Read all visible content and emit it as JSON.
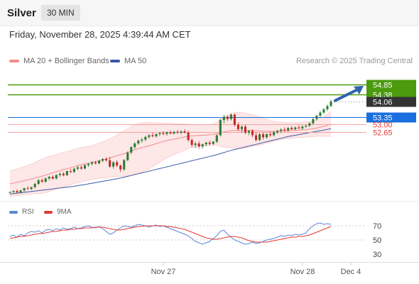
{
  "header": {
    "instrument": "Silver",
    "timeframe": "30 MIN",
    "datetime": "Friday, November 28, 2025 4:39:44 AM CET"
  },
  "legend": {
    "bollinger": "MA 20 + Bollinger Bands",
    "ma50": "MA 50",
    "credit": "Research © 2025 Trading Central"
  },
  "rsi_legend": {
    "rsi": "RSI",
    "ma9": "9MA"
  },
  "colors": {
    "up_candle": "#2e7d32",
    "down_candle": "#c62828",
    "bollinger": "#f28b8b",
    "ma50": "#3a5aa8",
    "resistance": "#4c9a0e",
    "support": "#f5a3a3",
    "pivot": "#1a6fe0",
    "current": "#333333",
    "arrow": "#2f63b0",
    "rsi": "#5b86d6",
    "rsi_ma": "#e53935"
  },
  "chart_data": [
    {
      "type": "candlestick",
      "title": "Silver",
      "timeframe": "30 MIN",
      "ylim": [
        49.3,
        55.6
      ],
      "x_labels": [
        "Nov 27",
        "Nov 28",
        "Dec 4"
      ],
      "current_price": 54.06,
      "levels": [
        {
          "value": 54.85,
          "label": "54.85",
          "kind": "resistance"
        },
        {
          "value": 54.38,
          "label": "54.38",
          "kind": "resistance"
        },
        {
          "value": 54.06,
          "label": "54.06",
          "kind": "current"
        },
        {
          "value": 53.35,
          "label": "53.35",
          "kind": "pivot"
        },
        {
          "value": 53.0,
          "label": "53.00",
          "kind": "support"
        },
        {
          "value": 52.65,
          "label": "52.65",
          "kind": "support"
        }
      ],
      "forecast": {
        "from": 54.1,
        "to": 54.85,
        "direction": "up"
      },
      "candles": [
        [
          49.85,
          49.9,
          49.8,
          49.87
        ],
        [
          49.87,
          49.95,
          49.84,
          49.92
        ],
        [
          49.92,
          50.0,
          49.88,
          49.85
        ],
        [
          49.85,
          49.98,
          49.82,
          49.95
        ],
        [
          49.95,
          50.08,
          49.9,
          50.05
        ],
        [
          50.05,
          50.15,
          49.98,
          50.02
        ],
        [
          50.02,
          50.12,
          49.96,
          50.1
        ],
        [
          50.1,
          50.3,
          50.05,
          50.25
        ],
        [
          50.25,
          50.48,
          50.2,
          50.42
        ],
        [
          50.42,
          50.5,
          50.3,
          50.35
        ],
        [
          50.35,
          50.55,
          50.3,
          50.5
        ],
        [
          50.5,
          50.62,
          50.42,
          50.58
        ],
        [
          50.58,
          50.65,
          50.45,
          50.5
        ],
        [
          50.5,
          50.7,
          50.46,
          50.66
        ],
        [
          50.66,
          50.78,
          50.58,
          50.72
        ],
        [
          50.72,
          50.8,
          50.6,
          50.65
        ],
        [
          50.65,
          50.88,
          50.62,
          50.84
        ],
        [
          50.84,
          50.95,
          50.75,
          50.8
        ],
        [
          50.8,
          51.0,
          50.76,
          50.95
        ],
        [
          50.95,
          51.08,
          50.88,
          51.02
        ],
        [
          51.02,
          51.1,
          50.9,
          50.96
        ],
        [
          50.96,
          51.15,
          50.92,
          51.12
        ],
        [
          51.12,
          51.22,
          51.04,
          51.18
        ],
        [
          51.18,
          51.3,
          51.1,
          51.25
        ],
        [
          51.25,
          51.32,
          51.14,
          51.2
        ],
        [
          51.2,
          51.36,
          51.16,
          51.32
        ],
        [
          51.32,
          51.45,
          51.26,
          51.4
        ],
        [
          51.4,
          51.48,
          51.28,
          51.34
        ],
        [
          51.34,
          51.5,
          51.0,
          51.05
        ],
        [
          51.05,
          51.3,
          50.95,
          51.25
        ],
        [
          51.25,
          51.35,
          51.02,
          51.1
        ],
        [
          51.1,
          51.15,
          50.8,
          50.92
        ],
        [
          50.92,
          51.4,
          50.85,
          51.35
        ],
        [
          51.35,
          51.75,
          51.3,
          51.7
        ],
        [
          51.7,
          52.0,
          51.62,
          51.95
        ],
        [
          51.95,
          52.18,
          51.88,
          52.12
        ],
        [
          52.12,
          52.3,
          52.05,
          52.25
        ],
        [
          52.25,
          52.38,
          52.15,
          52.3
        ],
        [
          52.3,
          52.48,
          52.22,
          52.42
        ],
        [
          52.42,
          52.55,
          52.34,
          52.5
        ],
        [
          52.5,
          52.62,
          52.4,
          52.45
        ],
        [
          52.45,
          52.58,
          52.38,
          52.55
        ],
        [
          52.55,
          52.66,
          52.46,
          52.6
        ],
        [
          52.6,
          52.7,
          52.5,
          52.56
        ],
        [
          52.56,
          52.68,
          52.48,
          52.64
        ],
        [
          52.64,
          52.72,
          52.55,
          52.58
        ],
        [
          52.58,
          52.7,
          52.52,
          52.66
        ],
        [
          52.66,
          52.74,
          52.56,
          52.62
        ],
        [
          52.62,
          52.72,
          52.54,
          52.68
        ],
        [
          52.68,
          52.78,
          52.58,
          52.62
        ],
        [
          52.62,
          52.72,
          52.2,
          52.28
        ],
        [
          52.28,
          52.36,
          51.95,
          52.05
        ],
        [
          52.05,
          52.2,
          51.9,
          52.12
        ],
        [
          52.12,
          52.22,
          51.88,
          51.98
        ],
        [
          51.98,
          52.12,
          51.88,
          52.08
        ],
        [
          52.08,
          52.2,
          51.98,
          52.16
        ],
        [
          52.16,
          52.26,
          52.02,
          52.1
        ],
        [
          52.1,
          52.24,
          52.04,
          52.2
        ],
        [
          52.2,
          52.55,
          52.14,
          52.5
        ],
        [
          52.5,
          53.25,
          52.44,
          53.2
        ],
        [
          53.2,
          53.45,
          53.05,
          53.35
        ],
        [
          53.35,
          53.42,
          53.15,
          53.25
        ],
        [
          53.25,
          53.52,
          53.18,
          53.45
        ],
        [
          53.45,
          53.5,
          52.9,
          52.98
        ],
        [
          52.98,
          53.1,
          52.7,
          52.78
        ],
        [
          52.78,
          52.95,
          52.62,
          52.9
        ],
        [
          52.9,
          52.98,
          52.55,
          52.62
        ],
        [
          52.62,
          52.75,
          52.5,
          52.7
        ],
        [
          52.7,
          52.78,
          52.4,
          52.5
        ],
        [
          52.5,
          52.65,
          52.2,
          52.28
        ],
        [
          52.28,
          52.6,
          52.22,
          52.55
        ],
        [
          52.55,
          52.62,
          52.3,
          52.4
        ],
        [
          52.4,
          52.6,
          52.34,
          52.55
        ],
        [
          52.55,
          52.66,
          52.42,
          52.5
        ],
        [
          52.5,
          52.7,
          52.44,
          52.64
        ],
        [
          52.64,
          52.76,
          52.55,
          52.7
        ],
        [
          52.7,
          52.82,
          52.6,
          52.76
        ],
        [
          52.76,
          52.86,
          52.66,
          52.72
        ],
        [
          52.72,
          52.88,
          52.66,
          52.84
        ],
        [
          52.84,
          52.92,
          52.74,
          52.78
        ],
        [
          52.78,
          52.9,
          52.72,
          52.86
        ],
        [
          52.86,
          52.96,
          52.78,
          52.82
        ],
        [
          52.82,
          52.95,
          52.76,
          52.9
        ],
        [
          52.9,
          53.0,
          52.84,
          52.94
        ],
        [
          52.94,
          53.1,
          52.88,
          53.05
        ],
        [
          53.05,
          53.3,
          52.98,
          53.25
        ],
        [
          53.25,
          53.45,
          53.18,
          53.4
        ],
        [
          53.4,
          53.62,
          53.32,
          53.55
        ],
        [
          53.55,
          53.75,
          53.48,
          53.7
        ],
        [
          53.7,
          53.92,
          53.62,
          53.85
        ],
        [
          53.85,
          54.15,
          53.8,
          54.06
        ]
      ],
      "bollinger_mid": [
        50.25,
        50.29,
        50.33,
        50.36,
        50.4,
        50.44,
        50.48,
        50.52,
        50.56,
        50.61,
        50.66,
        50.71,
        50.76,
        50.81,
        50.86,
        50.91,
        50.95,
        51.0,
        51.05,
        51.1,
        51.14,
        51.17,
        51.2,
        51.24,
        51.28,
        51.32,
        51.36,
        51.4,
        51.45,
        51.5,
        51.55,
        51.6,
        51.65,
        51.71,
        51.77,
        51.83,
        51.88,
        51.93,
        51.97,
        52.01,
        52.06,
        52.11,
        52.16,
        52.21,
        52.25,
        52.29,
        52.32,
        52.35,
        52.38,
        52.42,
        52.45,
        52.47,
        52.48,
        52.49,
        52.5,
        52.51,
        52.52,
        52.54,
        52.57,
        52.61,
        52.65,
        52.68,
        52.71,
        52.72,
        52.72,
        52.72,
        52.72,
        52.72,
        52.72,
        52.71,
        52.7,
        52.69,
        52.69,
        52.68,
        52.68,
        52.69,
        52.7,
        52.71,
        52.71,
        52.72,
        52.73,
        52.74,
        52.75,
        52.76,
        52.78,
        52.8,
        52.83,
        52.87,
        52.91,
        52.96,
        53.02
      ],
      "bollinger_upper": [
        50.85,
        50.89,
        50.95,
        51.0,
        51.05,
        51.11,
        51.17,
        51.24,
        51.32,
        51.4,
        51.47,
        51.52,
        51.56,
        51.61,
        51.66,
        51.71,
        51.75,
        51.79,
        51.84,
        51.89,
        51.93,
        51.96,
        51.98,
        52.02,
        52.08,
        52.14,
        52.2,
        52.26,
        52.33,
        52.41,
        52.5,
        52.6,
        52.7,
        52.8,
        52.9,
        52.98,
        53.04,
        53.07,
        53.08,
        53.08,
        53.08,
        53.07,
        53.07,
        53.06,
        53.06,
        53.05,
        53.04,
        53.03,
        53.03,
        53.02,
        53.01,
        53.0,
        53.0,
        52.99,
        52.99,
        52.99,
        53.0,
        53.02,
        53.1,
        53.25,
        53.35,
        53.43,
        53.5,
        53.55,
        53.56,
        53.55,
        53.52,
        53.49,
        53.45,
        53.4,
        53.36,
        53.3,
        53.24,
        53.18,
        53.14,
        53.11,
        53.1,
        53.09,
        53.08,
        53.08,
        53.08,
        53.09,
        53.1,
        53.11,
        53.13,
        53.16,
        53.21,
        53.28,
        53.37,
        53.47,
        53.6
      ],
      "bollinger_lower": [
        49.65,
        49.69,
        49.71,
        49.72,
        49.75,
        49.77,
        49.79,
        49.8,
        49.8,
        49.82,
        49.85,
        49.9,
        49.96,
        50.01,
        50.06,
        50.11,
        50.15,
        50.21,
        50.26,
        50.31,
        50.35,
        50.38,
        50.42,
        50.46,
        50.48,
        50.5,
        50.52,
        50.54,
        50.57,
        50.59,
        50.6,
        50.6,
        50.6,
        50.62,
        50.64,
        50.68,
        50.72,
        50.79,
        50.86,
        50.94,
        51.04,
        51.15,
        51.25,
        51.36,
        51.44,
        51.53,
        51.6,
        51.67,
        51.73,
        51.82,
        51.89,
        51.94,
        51.96,
        51.99,
        52.01,
        52.03,
        52.04,
        52.06,
        52.04,
        51.97,
        51.95,
        51.93,
        51.92,
        51.89,
        51.88,
        51.89,
        51.92,
        51.95,
        51.99,
        52.02,
        52.04,
        52.08,
        52.14,
        52.18,
        52.22,
        52.27,
        52.3,
        52.33,
        52.34,
        52.36,
        52.38,
        52.39,
        52.4,
        52.41,
        52.43,
        52.44,
        52.45,
        52.46,
        52.45,
        52.45,
        52.44
      ],
      "ma50": [
        49.78,
        49.8,
        49.82,
        49.84,
        49.86,
        49.88,
        49.9,
        49.92,
        49.94,
        49.96,
        49.98,
        50.0,
        50.02,
        50.04,
        50.06,
        50.08,
        50.1,
        50.12,
        50.14,
        50.17,
        50.2,
        50.22,
        50.25,
        50.28,
        50.31,
        50.34,
        50.37,
        50.4,
        50.43,
        50.46,
        50.49,
        50.52,
        50.56,
        50.6,
        50.64,
        50.68,
        50.72,
        50.76,
        50.8,
        50.84,
        50.88,
        50.92,
        50.96,
        51.0,
        51.04,
        51.08,
        51.12,
        51.16,
        51.2,
        51.24,
        51.28,
        51.32,
        51.36,
        51.4,
        51.44,
        51.48,
        51.52,
        51.56,
        51.6,
        51.65,
        51.7,
        51.75,
        51.8,
        51.84,
        51.88,
        51.92,
        51.96,
        52.0,
        52.04,
        52.08,
        52.12,
        52.16,
        52.2,
        52.24,
        52.28,
        52.32,
        52.36,
        52.4,
        52.44,
        52.47,
        52.5,
        52.53,
        52.56,
        52.59,
        52.62,
        52.65,
        52.68,
        52.71,
        52.74,
        52.77,
        52.8
      ]
    },
    {
      "type": "line",
      "title": "RSI",
      "ylim": [
        20,
        80
      ],
      "y_ticks": [
        70,
        50,
        30
      ],
      "guides": [
        70,
        50
      ],
      "series": [
        {
          "name": "RSI",
          "values": [
            55,
            57,
            54,
            58,
            56,
            60,
            62,
            61,
            63,
            60,
            64,
            65,
            63,
            66,
            64,
            67,
            65,
            66,
            68,
            66,
            67,
            69,
            70,
            68,
            67,
            69,
            66,
            62,
            58,
            60,
            64,
            67,
            70,
            69,
            68,
            70,
            72,
            71,
            70,
            68,
            70,
            71,
            69,
            70,
            68,
            66,
            64,
            62,
            60,
            58,
            56,
            52,
            48,
            46,
            44,
            46,
            48,
            52,
            56,
            62,
            64,
            58,
            54,
            50,
            48,
            46,
            44,
            45,
            47,
            45,
            46,
            48,
            50,
            51,
            52,
            54,
            56,
            55,
            57,
            56,
            58,
            57,
            58,
            60,
            66,
            70,
            73,
            74,
            72,
            73,
            72
          ]
        },
        {
          "name": "9MA",
          "values": [
            52,
            53,
            54,
            55,
            55,
            56,
            57,
            58,
            59,
            59,
            60,
            61,
            62,
            62,
            63,
            64,
            64,
            65,
            65,
            66,
            66,
            67,
            67,
            67,
            68,
            68,
            68,
            67,
            66,
            65,
            64,
            64,
            65,
            66,
            67,
            68,
            69,
            69,
            70,
            70,
            70,
            70,
            70,
            70,
            69,
            69,
            68,
            67,
            66,
            65,
            63,
            61,
            59,
            57,
            55,
            53,
            52,
            51,
            51,
            52,
            53,
            54,
            55,
            55,
            54,
            53,
            51,
            49,
            48,
            47,
            47,
            47,
            47,
            48,
            49,
            50,
            51,
            52,
            53,
            54,
            54,
            55,
            55,
            56,
            57,
            59,
            61,
            63,
            65,
            67,
            69
          ]
        }
      ]
    }
  ]
}
